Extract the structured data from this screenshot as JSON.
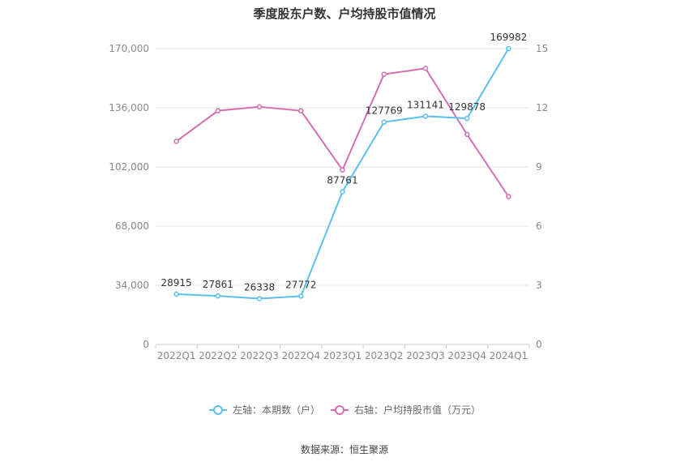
{
  "chart_data": {
    "type": "line",
    "title": "季度股东户数、户均持股市值情况",
    "categories": [
      "2022Q1",
      "2022Q2",
      "2022Q3",
      "2022Q4",
      "2023Q1",
      "2023Q2",
      "2023Q3",
      "2023Q4",
      "2024Q1"
    ],
    "series": [
      {
        "name": "左轴：本期数（户）",
        "axis": "left",
        "color": "#5bc0f0",
        "values": [
          28915,
          27861,
          26338,
          27772,
          87761,
          127769,
          131141,
          129878,
          169982
        ],
        "labels": [
          "28915",
          "27861",
          "26338",
          "27772",
          "87761",
          "127769",
          "131141",
          "129878",
          "169982"
        ]
      },
      {
        "name": "右轴：户均持股市值（万元）",
        "axis": "right",
        "color": "#d46eb3",
        "values": [
          10.3,
          11.85,
          12.05,
          11.85,
          8.85,
          13.7,
          14.0,
          10.65,
          7.5
        ]
      }
    ],
    "left_axis": {
      "ylim": [
        0,
        170000
      ],
      "ticks": [
        "0",
        "34,000",
        "68,000",
        "102,000",
        "136,000",
        "170,000"
      ]
    },
    "right_axis": {
      "ylim": [
        0,
        15
      ],
      "ticks": [
        "0",
        "3",
        "6",
        "9",
        "12",
        "15"
      ]
    },
    "grid": true,
    "legend_position": "bottom"
  },
  "source": "数据来源：恒生聚源"
}
